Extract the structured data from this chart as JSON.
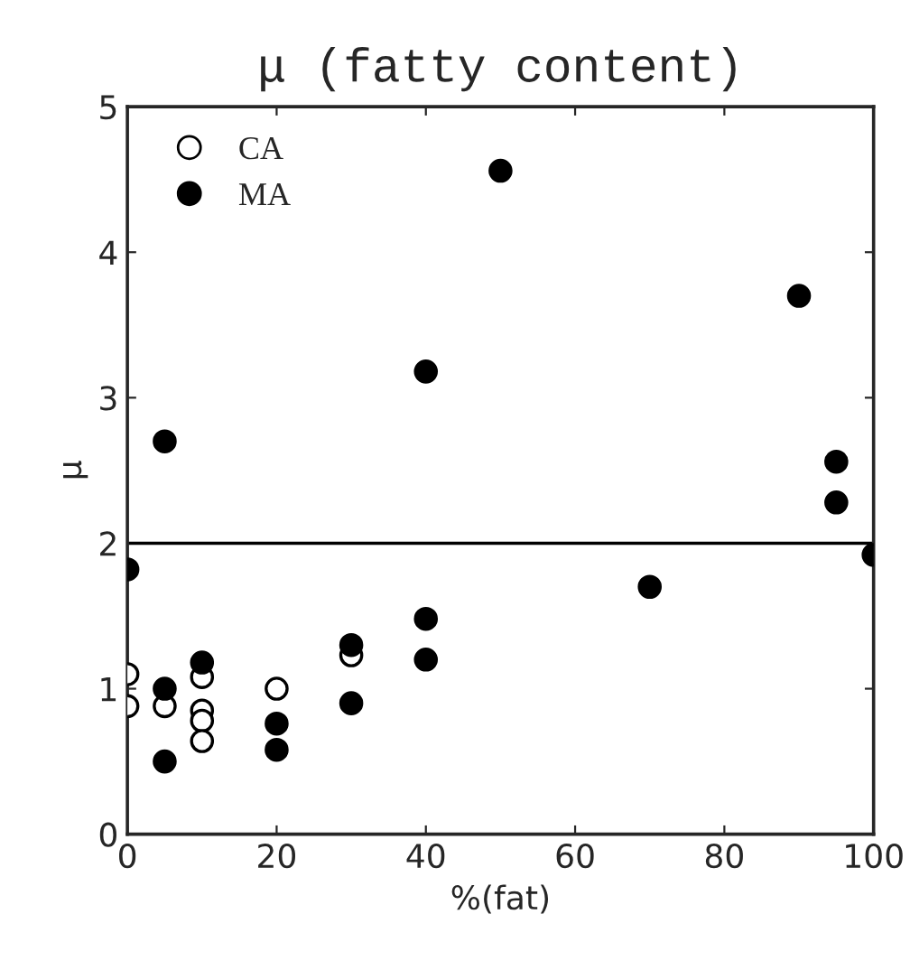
{
  "chart_data": {
    "type": "scatter",
    "title": "μ (fatty content)",
    "xlabel": "%(fat)",
    "ylabel": "μ",
    "xlim": [
      0,
      100
    ],
    "xticks": [
      0,
      20,
      40,
      60,
      80,
      100
    ],
    "ylim": [
      0,
      5
    ],
    "yticks": [
      0,
      1,
      2,
      3,
      4,
      5
    ],
    "legend": "top left",
    "grid": false,
    "marker": "circle",
    "ref_lines": [
      {
        "axis": "y",
        "value": 2,
        "color": "#000000",
        "line_style": "solid"
      }
    ],
    "series": [
      {
        "name": "CA",
        "color": "#ffffff",
        "x": [
          0,
          0,
          5,
          10,
          10,
          10,
          10,
          20,
          30
        ],
        "values": [
          1.1,
          0.88,
          0.88,
          1.08,
          0.85,
          0.78,
          0.64,
          1.0,
          1.23
        ]
      },
      {
        "name": "MA",
        "color": "#000000",
        "x": [
          0,
          5,
          5,
          5,
          10,
          20,
          20,
          30,
          30,
          40,
          40,
          40,
          50,
          70,
          90,
          95,
          95,
          100
        ],
        "values": [
          1.82,
          2.7,
          1.0,
          0.5,
          1.18,
          0.76,
          0.58,
          1.3,
          0.9,
          3.18,
          1.48,
          1.2,
          4.56,
          1.7,
          3.7,
          2.56,
          2.28,
          1.92
        ]
      }
    ]
  }
}
